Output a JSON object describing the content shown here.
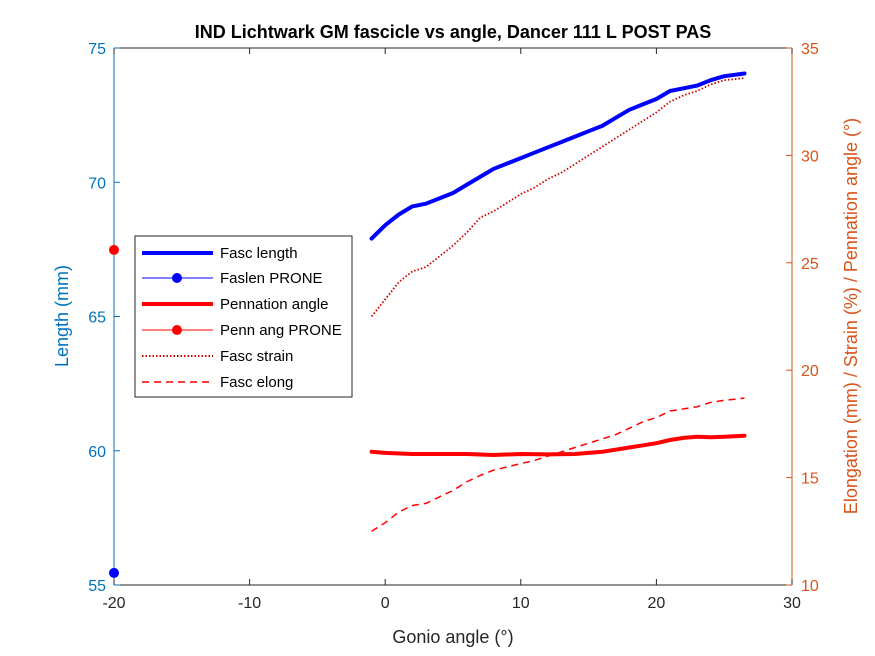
{
  "chart_data": {
    "type": "line",
    "title": "IND Lichtwark GM fascicle vs angle, Dancer 111 L POST PAS",
    "xlabel": "Gonio angle (°)",
    "ylabel_left": "Length (mm)",
    "ylabel_right": "Elongation (mm) / Strain (%) / Pennation angle (°)",
    "xlim": [
      -20,
      30
    ],
    "ylim_left": [
      55,
      75
    ],
    "ylim_right": [
      10,
      35
    ],
    "xticks": [
      "-20",
      "-10",
      "0",
      "10",
      "20",
      "30"
    ],
    "yticks_left": [
      "55",
      "60",
      "65",
      "70",
      "75"
    ],
    "yticks_right": [
      "10",
      "15",
      "20",
      "25",
      "30",
      "35"
    ],
    "colors": {
      "left_axis": "#0072BD",
      "right_axis": "#D95319",
      "fasc_length": "#0000FF",
      "pennation": "#FF0000",
      "axes": "#262626"
    },
    "legend_position": "left-center",
    "series": [
      {
        "name": "Fasc length",
        "axis": "left",
        "style": "solid-thick",
        "color": "#0000FF",
        "x": [
          -1,
          0,
          1,
          2,
          3,
          4,
          5,
          6,
          7,
          8,
          9,
          10,
          11,
          12,
          13,
          14,
          15,
          16,
          17,
          18,
          19,
          20,
          21,
          22,
          23,
          24,
          25,
          26.5
        ],
        "y": [
          67.9,
          68.4,
          68.8,
          69.1,
          69.2,
          69.4,
          69.6,
          69.9,
          70.2,
          70.5,
          70.7,
          70.9,
          71.1,
          71.3,
          71.5,
          71.7,
          71.9,
          72.1,
          72.4,
          72.7,
          72.9,
          73.1,
          73.4,
          73.5,
          73.6,
          73.8,
          73.95,
          74.05
        ]
      },
      {
        "name": "Faslen PRONE",
        "axis": "left",
        "style": "marker",
        "color": "#0000FF",
        "x": [
          -20
        ],
        "y": [
          55.45
        ]
      },
      {
        "name": "Pennation angle",
        "axis": "right",
        "style": "solid-thick",
        "color": "#FF0000",
        "x": [
          -1,
          0,
          2,
          4,
          6,
          8,
          10,
          12,
          14,
          16,
          18,
          20,
          21,
          22,
          23,
          24,
          25,
          26.5
        ],
        "y": [
          16.2,
          16.15,
          16.1,
          16.1,
          16.1,
          16.05,
          16.1,
          16.08,
          16.1,
          16.2,
          16.4,
          16.6,
          16.75,
          16.85,
          16.9,
          16.88,
          16.9,
          16.95
        ]
      },
      {
        "name": "Penn ang PRONE",
        "axis": "right",
        "style": "marker",
        "color": "#FF0000",
        "x": [
          -20
        ],
        "y": [
          25.6
        ]
      },
      {
        "name": "Fasc strain",
        "axis": "right",
        "style": "dotted",
        "color": "#CC0000",
        "x": [
          -1,
          0,
          1,
          2,
          3,
          4,
          5,
          6,
          7,
          8,
          9,
          10,
          11,
          12,
          13,
          14,
          15,
          16,
          17,
          18,
          19,
          20,
          21,
          22,
          23,
          24,
          25,
          26.5
        ],
        "y": [
          22.5,
          23.3,
          24.1,
          24.6,
          24.8,
          25.3,
          25.8,
          26.4,
          27.1,
          27.4,
          27.8,
          28.2,
          28.5,
          28.9,
          29.2,
          29.6,
          30.0,
          30.4,
          30.8,
          31.2,
          31.6,
          32.0,
          32.5,
          32.8,
          33.0,
          33.3,
          33.5,
          33.6
        ]
      },
      {
        "name": "Fasc elong",
        "axis": "right",
        "style": "dashed",
        "color": "#FF0000",
        "x": [
          -1,
          0,
          1,
          2,
          3,
          4,
          5,
          6,
          7,
          8,
          9,
          10,
          11,
          12,
          13,
          14,
          15,
          16,
          17,
          18,
          19,
          20,
          21,
          22,
          23,
          24,
          25,
          26.5
        ],
        "y": [
          12.5,
          12.9,
          13.4,
          13.7,
          13.8,
          14.1,
          14.4,
          14.8,
          15.1,
          15.35,
          15.5,
          15.65,
          15.8,
          16.0,
          16.2,
          16.4,
          16.6,
          16.8,
          17.0,
          17.3,
          17.6,
          17.8,
          18.1,
          18.2,
          18.3,
          18.5,
          18.6,
          18.7
        ]
      }
    ]
  }
}
